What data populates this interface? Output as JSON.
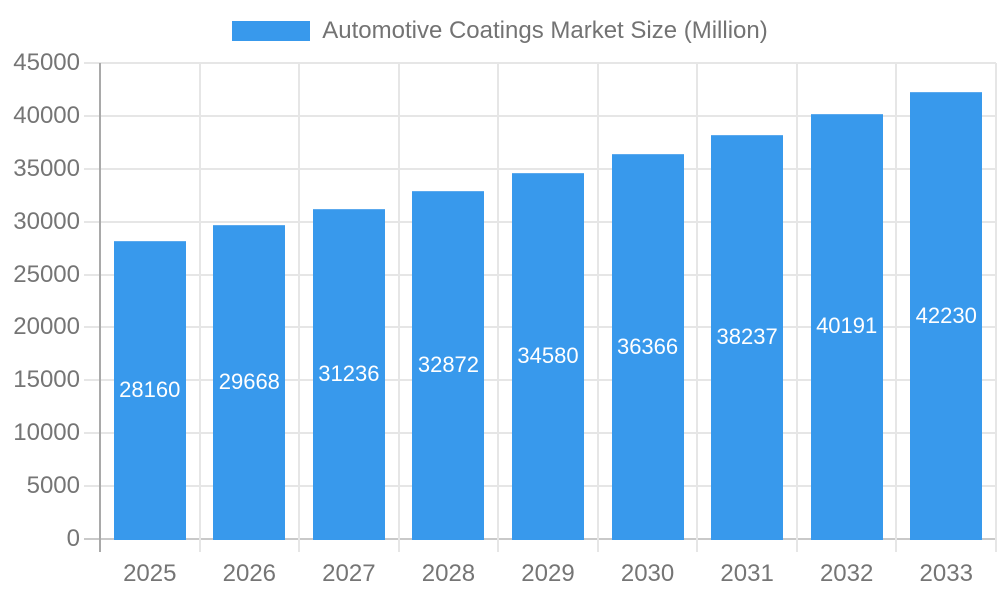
{
  "chart_data": {
    "type": "bar",
    "title": "",
    "legend": {
      "label": "Automotive Coatings Market Size (Million)",
      "position": "top"
    },
    "categories": [
      "2025",
      "2026",
      "2027",
      "2028",
      "2029",
      "2030",
      "2031",
      "2032",
      "2033"
    ],
    "series": [
      {
        "name": "Automotive Coatings Market Size (Million)",
        "values": [
          28160,
          29668,
          31236,
          32872,
          34580,
          36366,
          38237,
          40191,
          42230
        ]
      }
    ],
    "data_labels_visible": true,
    "data_labels": [
      "28160",
      "29668",
      "31236",
      "32872",
      "34580",
      "36366",
      "38237",
      "40191",
      "42230"
    ],
    "xlabel": "",
    "ylabel": "",
    "ylim": [
      0,
      45000
    ],
    "ytick_step": 5000,
    "ytick_labels": [
      "0",
      "5000",
      "10000",
      "15000",
      "20000",
      "25000",
      "30000",
      "35000",
      "40000",
      "45000"
    ],
    "grid": true,
    "colors": {
      "bar": "#3899EC",
      "bar_border": "#5CAAEE",
      "grid": "#E6E6E6",
      "x_axis_line": "#C9C9C9",
      "y_axis_line": "#A9A9A9",
      "axis_text": "#757575",
      "legend_text": "#737373",
      "data_label_text": "#FFFFFF",
      "background": "#FFFFFF"
    }
  }
}
